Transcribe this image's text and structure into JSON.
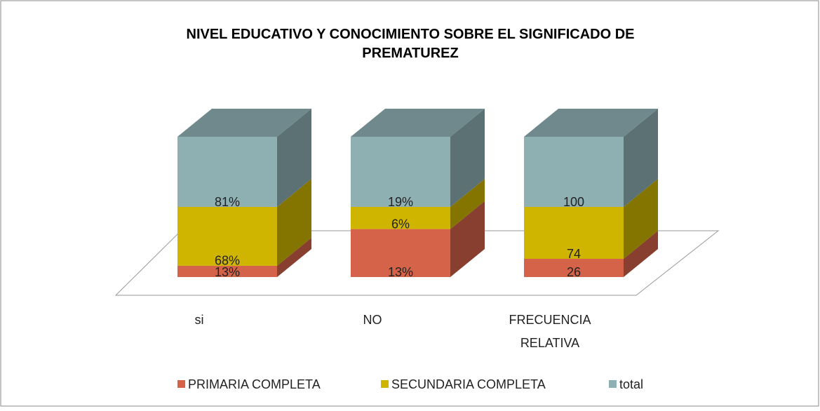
{
  "chart_data": {
    "type": "bar3d",
    "stacking": "percent",
    "title": "NIVEL EDUCATIVO Y CONOCIMIENTO SOBRE EL SIGNIFICADO DE PREMATUREZ",
    "categories": [
      "si",
      "NO",
      "FRECUENCIA RELATIVA"
    ],
    "series": [
      {
        "name": "PRIMARIA COMPLETA",
        "color": "#d5634a",
        "values": [
          13,
          13,
          26
        ],
        "value_labels": [
          "13%",
          "13%",
          "26"
        ]
      },
      {
        "name": "SECUNDARIA COMPLETA",
        "color": "#cfb500",
        "values": [
          68,
          6,
          74
        ],
        "value_labels": [
          "68%",
          "6%",
          "74"
        ]
      },
      {
        "name": "total",
        "color": "#8eb0b3",
        "values": [
          81,
          19,
          100
        ],
        "value_labels": [
          "81%",
          "19%",
          "100"
        ]
      }
    ],
    "legend": "bottom"
  }
}
